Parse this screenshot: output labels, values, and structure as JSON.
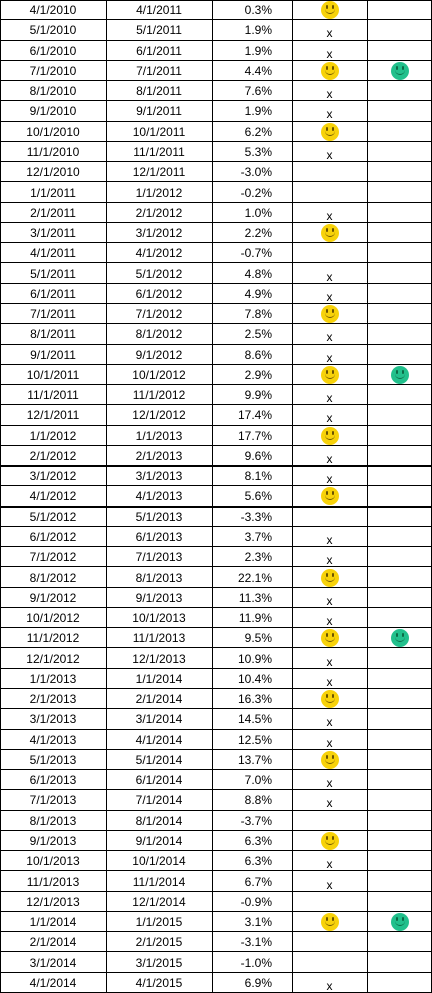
{
  "colors": {
    "yellow_smiley": "#f7d20a",
    "green_smiley": "#22c08c",
    "grid": "#000000"
  },
  "icons": {
    "yellow": "yellow-smiley-icon",
    "green": "green-smiley-icon"
  },
  "mark_x": "x",
  "rows": [
    {
      "start": "4/1/2010",
      "end": "4/1/2011",
      "pct": "0.3%",
      "mark": "yellow",
      "extra": ""
    },
    {
      "start": "5/1/2010",
      "end": "5/1/2011",
      "pct": "1.9%",
      "mark": "x",
      "extra": ""
    },
    {
      "start": "6/1/2010",
      "end": "6/1/2011",
      "pct": "1.9%",
      "mark": "x",
      "extra": ""
    },
    {
      "start": "7/1/2010",
      "end": "7/1/2011",
      "pct": "4.4%",
      "mark": "yellow",
      "extra": "green"
    },
    {
      "start": "8/1/2010",
      "end": "8/1/2011",
      "pct": "7.6%",
      "mark": "x",
      "extra": ""
    },
    {
      "start": "9/1/2010",
      "end": "9/1/2011",
      "pct": "1.9%",
      "mark": "x",
      "extra": ""
    },
    {
      "start": "10/1/2010",
      "end": "10/1/2011",
      "pct": "6.2%",
      "mark": "yellow",
      "extra": ""
    },
    {
      "start": "11/1/2010",
      "end": "11/1/2011",
      "pct": "5.3%",
      "mark": "x",
      "extra": ""
    },
    {
      "start": "12/1/2010",
      "end": "12/1/2011",
      "pct": "-3.0%",
      "mark": "",
      "extra": ""
    },
    {
      "start": "1/1/2011",
      "end": "1/1/2012",
      "pct": "-0.2%",
      "mark": "",
      "extra": ""
    },
    {
      "start": "2/1/2011",
      "end": "2/1/2012",
      "pct": "1.0%",
      "mark": "x",
      "extra": ""
    },
    {
      "start": "3/1/2011",
      "end": "3/1/2012",
      "pct": "2.2%",
      "mark": "yellow",
      "extra": ""
    },
    {
      "start": "4/1/2011",
      "end": "4/1/2012",
      "pct": "-0.7%",
      "mark": "",
      "extra": ""
    },
    {
      "start": "5/1/2011",
      "end": "5/1/2012",
      "pct": "4.8%",
      "mark": "x",
      "extra": ""
    },
    {
      "start": "6/1/2011",
      "end": "6/1/2012",
      "pct": "4.9%",
      "mark": "x",
      "extra": ""
    },
    {
      "start": "7/1/2011",
      "end": "7/1/2012",
      "pct": "7.8%",
      "mark": "yellow",
      "extra": ""
    },
    {
      "start": "8/1/2011",
      "end": "8/1/2012",
      "pct": "2.5%",
      "mark": "x",
      "extra": ""
    },
    {
      "start": "9/1/2011",
      "end": "9/1/2012",
      "pct": "8.6%",
      "mark": "x",
      "extra": ""
    },
    {
      "start": "10/1/2011",
      "end": "10/1/2012",
      "pct": "2.9%",
      "mark": "yellow",
      "extra": "green"
    },
    {
      "start": "11/1/2011",
      "end": "11/1/2012",
      "pct": "9.9%",
      "mark": "x",
      "extra": ""
    },
    {
      "start": "12/1/2011",
      "end": "12/1/2012",
      "pct": "17.4%",
      "mark": "x",
      "extra": ""
    },
    {
      "start": "1/1/2012",
      "end": "1/1/2013",
      "pct": "17.7%",
      "mark": "yellow",
      "extra": ""
    },
    {
      "start": "2/1/2012",
      "end": "2/1/2013",
      "pct": "9.6%",
      "mark": "x",
      "extra": ""
    },
    {
      "start": "3/1/2012",
      "end": "3/1/2013",
      "pct": "8.1%",
      "mark": "x",
      "extra": ""
    },
    {
      "start": "4/1/2012",
      "end": "4/1/2013",
      "pct": "5.6%",
      "mark": "yellow",
      "extra": ""
    },
    {
      "start": "5/1/2012",
      "end": "5/1/2013",
      "pct": "-3.3%",
      "mark": "",
      "extra": ""
    },
    {
      "start": "6/1/2012",
      "end": "6/1/2013",
      "pct": "3.7%",
      "mark": "x",
      "extra": ""
    },
    {
      "start": "7/1/2012",
      "end": "7/1/2013",
      "pct": "2.3%",
      "mark": "x",
      "extra": ""
    },
    {
      "start": "8/1/2012",
      "end": "8/1/2013",
      "pct": "22.1%",
      "mark": "yellow",
      "extra": ""
    },
    {
      "start": "9/1/2012",
      "end": "9/1/2013",
      "pct": "11.3%",
      "mark": "x",
      "extra": ""
    },
    {
      "start": "10/1/2012",
      "end": "10/1/2013",
      "pct": "11.9%",
      "mark": "x",
      "extra": ""
    },
    {
      "start": "11/1/2012",
      "end": "11/1/2013",
      "pct": "9.5%",
      "mark": "yellow",
      "extra": "green"
    },
    {
      "start": "12/1/2012",
      "end": "12/1/2013",
      "pct": "10.9%",
      "mark": "x",
      "extra": ""
    },
    {
      "start": "1/1/2013",
      "end": "1/1/2014",
      "pct": "10.4%",
      "mark": "x",
      "extra": ""
    },
    {
      "start": "2/1/2013",
      "end": "2/1/2014",
      "pct": "16.3%",
      "mark": "yellow",
      "extra": ""
    },
    {
      "start": "3/1/2013",
      "end": "3/1/2014",
      "pct": "14.5%",
      "mark": "x",
      "extra": ""
    },
    {
      "start": "4/1/2013",
      "end": "4/1/2014",
      "pct": "12.5%",
      "mark": "x",
      "extra": ""
    },
    {
      "start": "5/1/2013",
      "end": "5/1/2014",
      "pct": "13.7%",
      "mark": "yellow",
      "extra": ""
    },
    {
      "start": "6/1/2013",
      "end": "6/1/2014",
      "pct": "7.0%",
      "mark": "x",
      "extra": ""
    },
    {
      "start": "7/1/2013",
      "end": "7/1/2014",
      "pct": "8.8%",
      "mark": "x",
      "extra": ""
    },
    {
      "start": "8/1/2013",
      "end": "8/1/2014",
      "pct": "-3.7%",
      "mark": "",
      "extra": ""
    },
    {
      "start": "9/1/2013",
      "end": "9/1/2014",
      "pct": "6.3%",
      "mark": "yellow",
      "extra": ""
    },
    {
      "start": "10/1/2013",
      "end": "10/1/2014",
      "pct": "6.3%",
      "mark": "x",
      "extra": ""
    },
    {
      "start": "11/1/2013",
      "end": "11/1/2014",
      "pct": "6.7%",
      "mark": "x",
      "extra": ""
    },
    {
      "start": "12/1/2013",
      "end": "12/1/2014",
      "pct": "-0.9%",
      "mark": "",
      "extra": ""
    },
    {
      "start": "1/1/2014",
      "end": "1/1/2015",
      "pct": "3.1%",
      "mark": "yellow",
      "extra": "green"
    },
    {
      "start": "2/1/2014",
      "end": "2/1/2015",
      "pct": "-3.1%",
      "mark": "",
      "extra": ""
    },
    {
      "start": "3/1/2014",
      "end": "3/1/2015",
      "pct": "-1.0%",
      "mark": "",
      "extra": ""
    },
    {
      "start": "4/1/2014",
      "end": "4/1/2015",
      "pct": "6.9%",
      "mark": "x",
      "extra": ""
    }
  ]
}
